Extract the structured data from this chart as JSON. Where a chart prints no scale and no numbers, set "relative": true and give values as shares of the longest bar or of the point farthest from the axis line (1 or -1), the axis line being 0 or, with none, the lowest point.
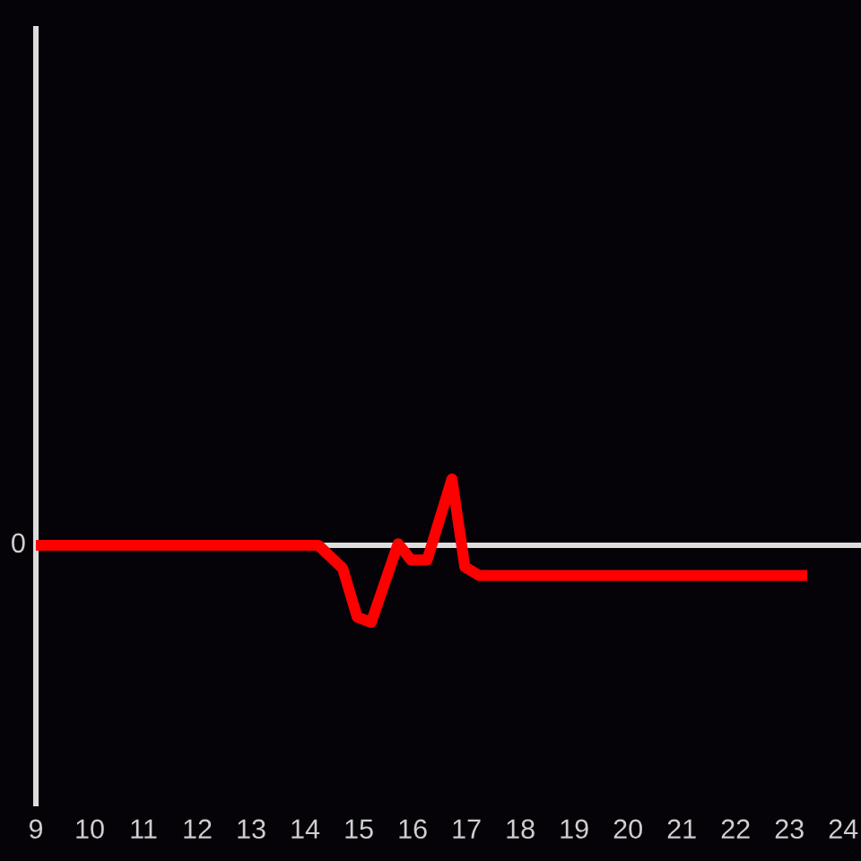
{
  "chart_data": {
    "type": "line",
    "relative": true,
    "x": [
      9,
      14.25,
      14.7,
      14.97,
      15.23,
      15.73,
      15.97,
      16.27,
      16.73,
      16.97,
      17.23,
      23.33
    ],
    "series": [
      {
        "color": "#ff0000",
        "values": [
          0,
          0,
          -0.3,
          -0.93,
          -1,
          0.02,
          -0.19,
          -0.19,
          0.86,
          -0.28,
          -0.39,
          -0.39
        ]
      }
    ],
    "xlim": [
      9,
      24.33
    ],
    "xticks": [
      9,
      10,
      11,
      12,
      13,
      14,
      15,
      16,
      17,
      18,
      19,
      20,
      21,
      22,
      23,
      24
    ],
    "ref_lines": [
      {
        "axis": "y",
        "value": 0,
        "label": "0",
        "color": "#dddddd"
      }
    ]
  }
}
